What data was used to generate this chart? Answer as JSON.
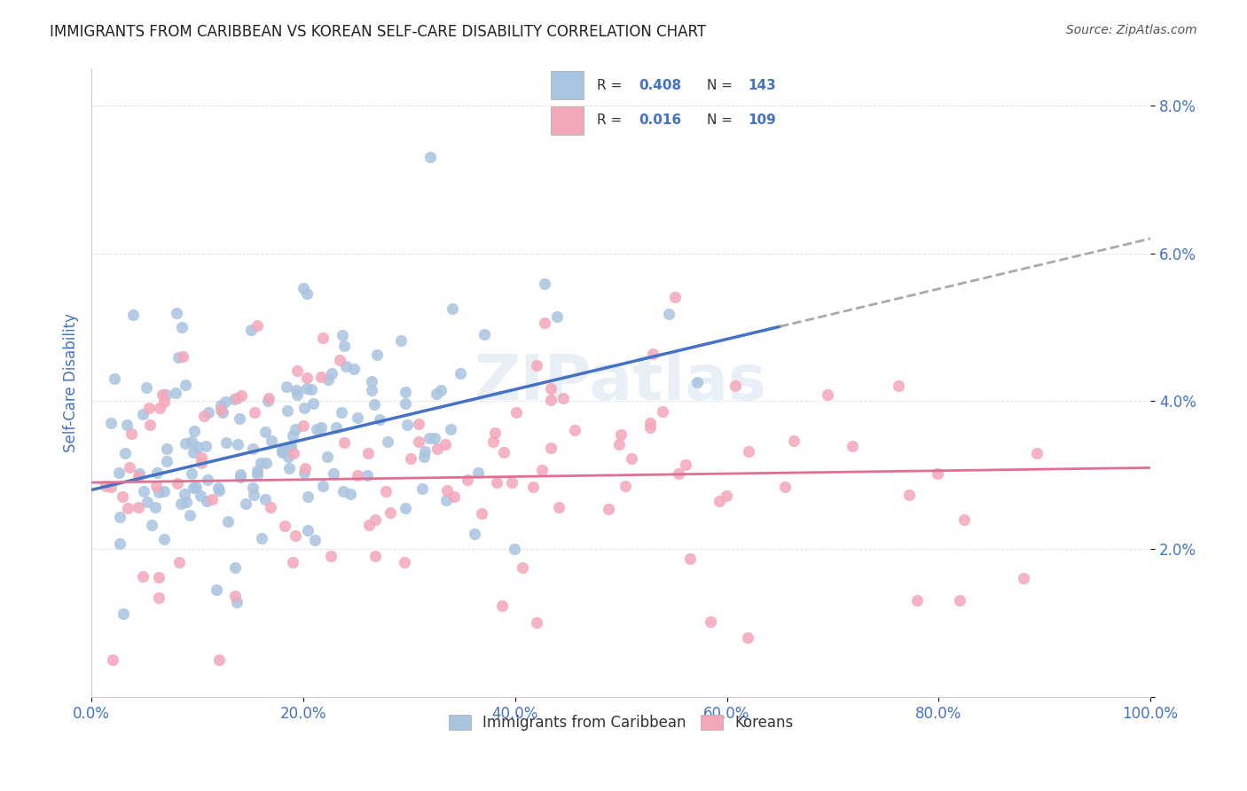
{
  "title": "IMMIGRANTS FROM CARIBBEAN VS KOREAN SELF-CARE DISABILITY CORRELATION CHART",
  "source": "Source: ZipAtlas.com",
  "ylabel": "Self-Care Disability",
  "xlabel": "",
  "xlim": [
    0,
    1
  ],
  "ylim": [
    0,
    0.085
  ],
  "yticks": [
    0.0,
    0.02,
    0.04,
    0.06,
    0.08
  ],
  "ytick_labels": [
    "",
    "2.0%",
    "4.0%",
    "6.0%",
    "8.0%"
  ],
  "xticks": [
    0.0,
    0.2,
    0.4,
    0.6,
    0.8,
    1.0
  ],
  "xtick_labels": [
    "0.0%",
    "20.0%",
    "40.0%",
    "60.0%",
    "80.0%",
    "100.0%"
  ],
  "caribbean_R": 0.408,
  "caribbean_N": 143,
  "korean_R": 0.016,
  "korean_N": 109,
  "caribbean_color": "#a8c4e0",
  "korean_color": "#f4a7b9",
  "caribbean_line_color": "#4472c4",
  "korean_line_color": "#e07090",
  "trend_line_dash_color": "#aaaaaa",
  "legend_text_color": "#4472c4",
  "title_color": "#222222",
  "axis_label_color": "#4472c4",
  "tick_label_color": "#4472c4",
  "watermark": "ZIPatlas",
  "background_color": "#ffffff",
  "grid_color": "#dddddd"
}
